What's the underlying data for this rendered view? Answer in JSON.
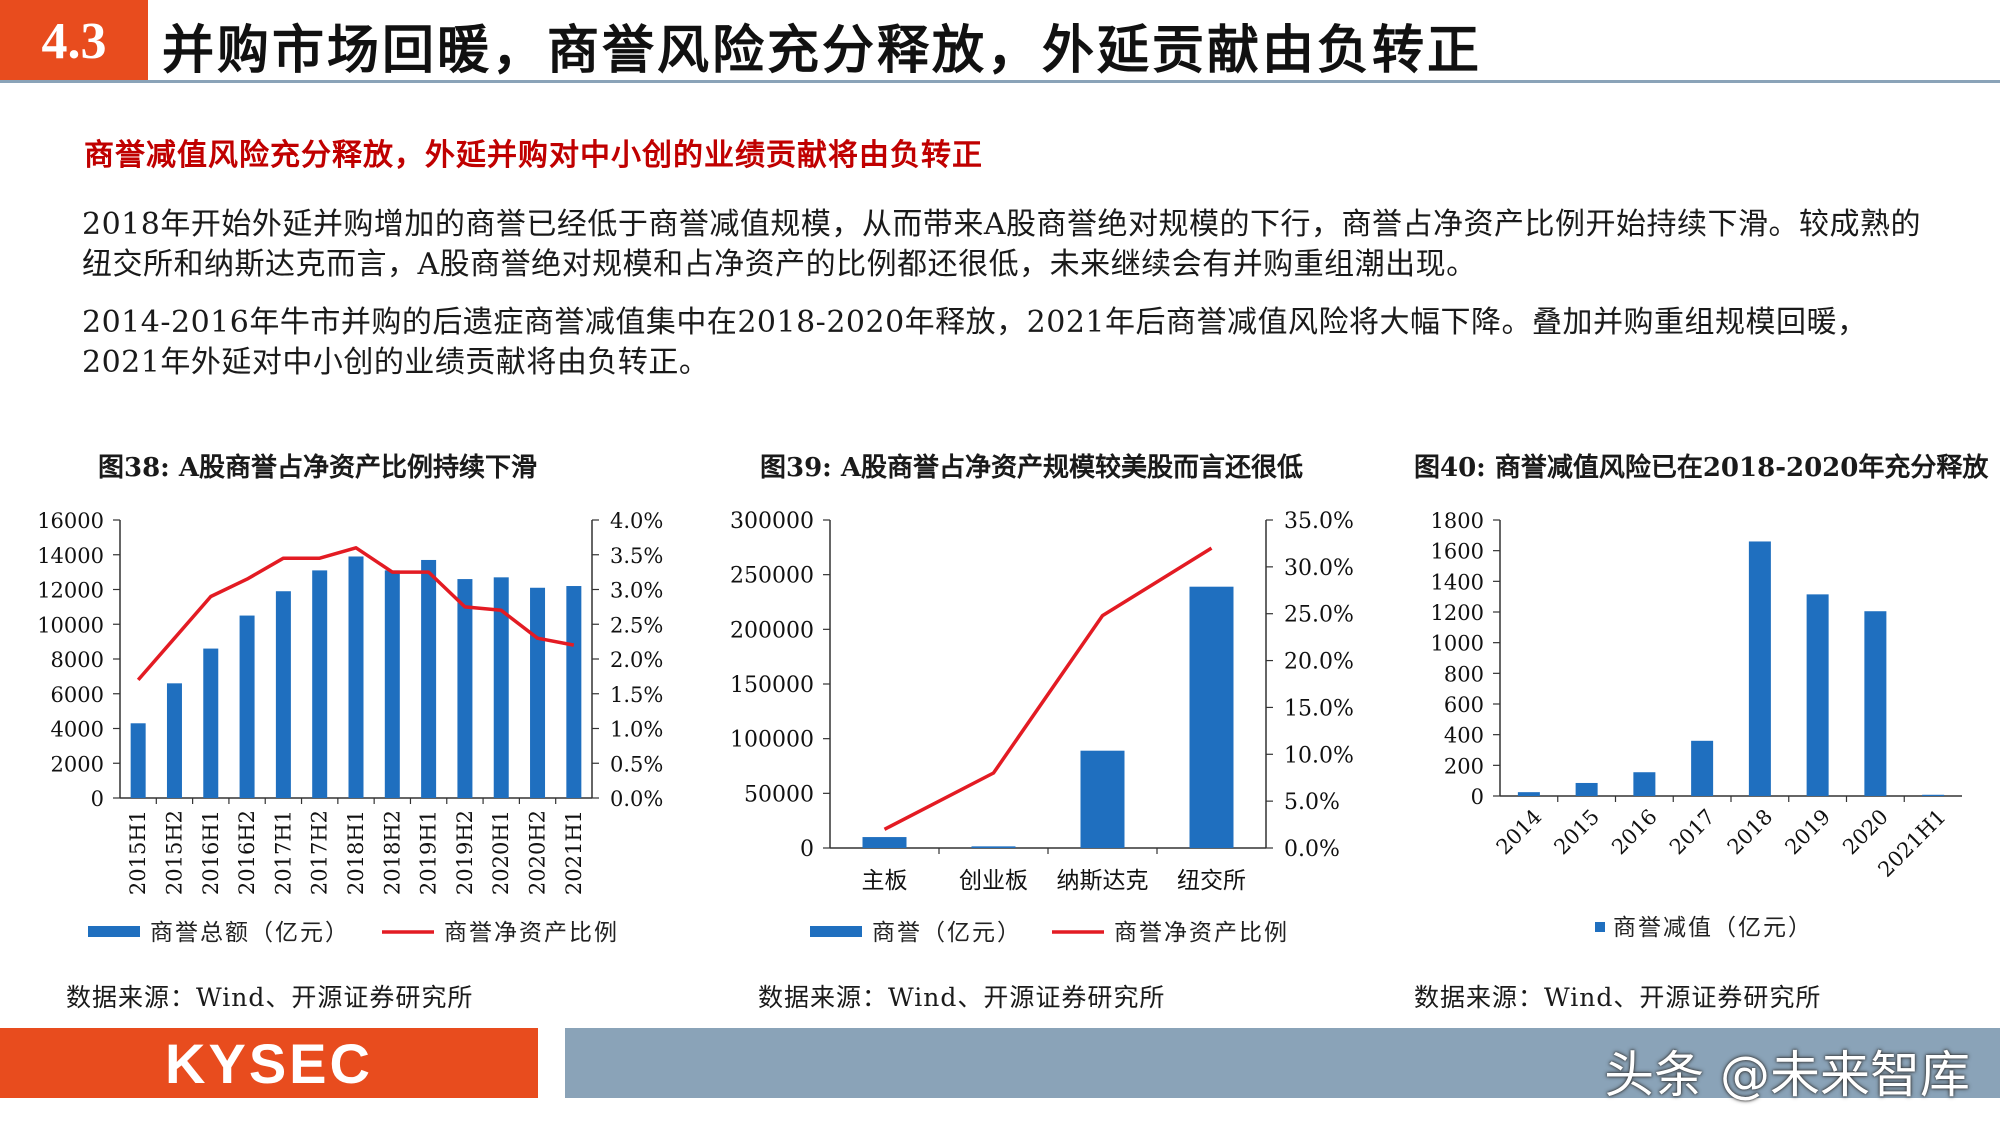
{
  "header": {
    "section_number": "4.3",
    "title": "并购市场回暖，商誉风险充分释放，外延贡献由负转正"
  },
  "subheading": "商誉减值风险充分释放，外延并购对中小创的业绩贡献将由负转正",
  "paragraphs": [
    "2018年开始外延并购增加的商誉已经低于商誉减值规模，从而带来A股商誉绝对规模的下行，商誉占净资产比例开始持续下滑。较成熟的纽交所和纳斯达克而言，A股商誉绝对规模和占净资产的比例都还很低，未来继续会有并购重组潮出现。",
    "2014-2016年牛市并购的后遗症商誉减值集中在2018-2020年释放，2021年后商誉减值风险将大幅下降。叠加并购重组规模回暖，2021年外延对中小创的业绩贡献将由负转正。"
  ],
  "colors": {
    "bar": "#1f6fbf",
    "line": "#e31b23",
    "accent": "#e84c1e",
    "footer": "#8aa3b8"
  },
  "chart_data": [
    {
      "type": "bar",
      "title": "图38: A股商誉占净资产比例持续下滑",
      "categories": [
        "2015H1",
        "2015H2",
        "2016H1",
        "2016H2",
        "2017H1",
        "2017H2",
        "2018H1",
        "2018H2",
        "2019H1",
        "2019H2",
        "2020H1",
        "2020H2",
        "2021H1"
      ],
      "series": [
        {
          "name": "商誉总额（亿元）",
          "type": "bar",
          "axis": "left",
          "values": [
            4300,
            6600,
            8600,
            10500,
            11900,
            13100,
            13900,
            13100,
            13700,
            12600,
            12700,
            12100,
            12200
          ]
        },
        {
          "name": "商誉净资产比例",
          "type": "line",
          "axis": "right",
          "values": [
            1.7,
            2.3,
            2.9,
            3.15,
            3.45,
            3.45,
            3.6,
            3.25,
            3.25,
            2.75,
            2.7,
            2.3,
            2.2
          ]
        }
      ],
      "ylim": [
        0,
        16000
      ],
      "yticks": [
        "16000",
        "14000",
        "12000",
        "10000",
        "8000",
        "6000",
        "4000",
        "2000",
        "0"
      ],
      "y2lim": [
        0,
        4
      ],
      "y2ticks": [
        "4.0%",
        "3.5%",
        "3.0%",
        "2.5%",
        "2.0%",
        "1.5%",
        "1.0%",
        "0.5%",
        "0.0%"
      ],
      "source": "数据来源：Wind、开源证券研究所"
    },
    {
      "type": "bar",
      "title": "图39: A股商誉占净资产规模较美股而言还很低",
      "categories": [
        "主板",
        "创业板",
        "纳斯达克",
        "纽交所"
      ],
      "series": [
        {
          "name": "商誉（亿元）",
          "type": "bar",
          "axis": "left",
          "values": [
            10000,
            1500,
            89000,
            239000
          ]
        },
        {
          "name": "商誉净资产比例",
          "type": "line",
          "axis": "right",
          "values": [
            2.0,
            8.0,
            24.8,
            32.0
          ]
        }
      ],
      "ylim": [
        0,
        300000
      ],
      "yticks": [
        "300000",
        "250000",
        "200000",
        "150000",
        "100000",
        "50000",
        "0"
      ],
      "y2lim": [
        0,
        35
      ],
      "y2ticks": [
        "35.0%",
        "30.0%",
        "25.0%",
        "20.0%",
        "15.0%",
        "10.0%",
        "5.0%",
        "0.0%"
      ],
      "source": "数据来源：Wind、开源证券研究所"
    },
    {
      "type": "bar",
      "title": "图40: 商誉减值风险已在2018-2020年充分释放",
      "categories": [
        "2014",
        "2015",
        "2016",
        "2017",
        "2018",
        "2019",
        "2020",
        "2021H1"
      ],
      "series": [
        {
          "name": "商誉减值（亿元）",
          "type": "bar",
          "axis": "left",
          "values": [
            25,
            85,
            155,
            360,
            1660,
            1315,
            1205,
            8
          ]
        }
      ],
      "ylim": [
        0,
        1800
      ],
      "yticks": [
        "1800",
        "1600",
        "1400",
        "1200",
        "1000",
        "800",
        "600",
        "400",
        "200",
        "0"
      ],
      "source": "数据来源：Wind、开源证券研究所"
    }
  ],
  "footer": {
    "logo": "KYSEC",
    "watermark": "头条 @未来智库"
  }
}
